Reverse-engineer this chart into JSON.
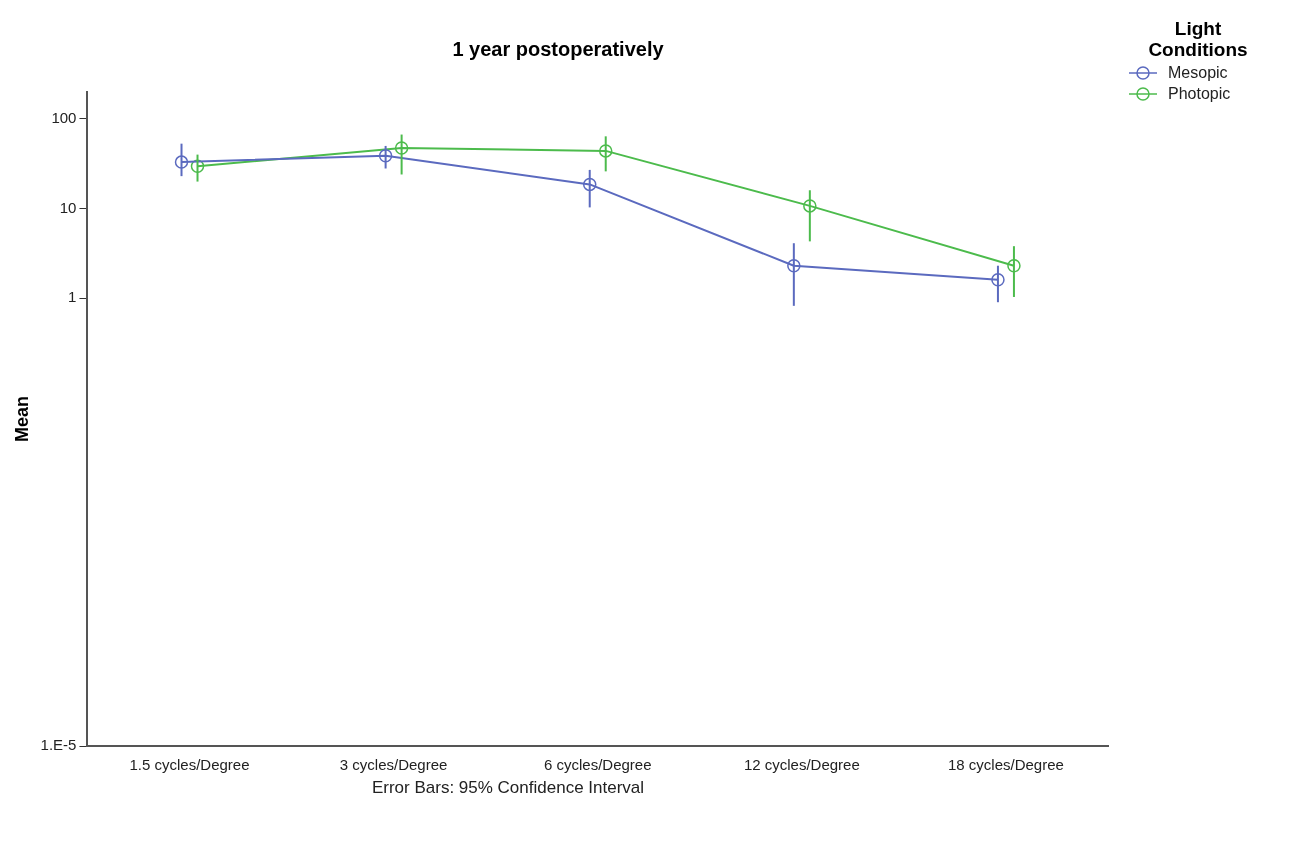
{
  "chart_data": {
    "type": "line",
    "title": "1 year postoperatively",
    "ylabel": "Mean",
    "legend_title": "Light Conditions",
    "annotations": [
      "Error Bars: 95% Confidence Interval"
    ],
    "categories": [
      "1.5 cycles/Degree",
      "3 cycles/Degree",
      "6 cycles/Degree",
      "12 cycles/Degree",
      "18 cycles/Degree"
    ],
    "series": [
      {
        "name": "Mesopic",
        "color": "#5b6abf",
        "values": [
          33,
          38.8,
          18.6,
          2.3,
          1.6
        ],
        "errors": [
          [
            23,
            53
          ],
          [
            28,
            50
          ],
          [
            10.3,
            27
          ],
          [
            0.82,
            4.1
          ],
          [
            0.9,
            2.3
          ]
        ]
      },
      {
        "name": "Photopic",
        "color": "#4cbb4c",
        "values": [
          29.7,
          47.5,
          44,
          10.7,
          2.3
        ],
        "errors": [
          [
            20,
            40
          ],
          [
            24,
            67
          ],
          [
            26,
            64
          ],
          [
            4.3,
            16
          ],
          [
            1.03,
            3.8
          ]
        ]
      }
    ],
    "log": "y",
    "ylim": [
      1e-05,
      200
    ],
    "yticks": [
      {
        "value": 1e-05,
        "label": "1.E-5"
      },
      1,
      10,
      100
    ],
    "grid": false,
    "legend": "top right",
    "marker": "circle",
    "line_style": "solid"
  }
}
